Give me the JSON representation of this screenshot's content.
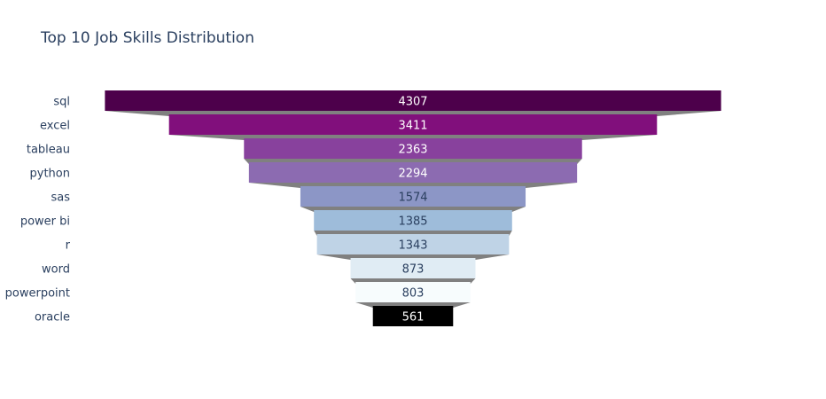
{
  "chart_data": {
    "type": "funnel",
    "title": "Top 10 Job Skills Distribution",
    "categories": [
      "sql",
      "excel",
      "tableau",
      "python",
      "sas",
      "power bi",
      "r",
      "word",
      "powerpoint",
      "oracle"
    ],
    "values": [
      4307,
      3411,
      2363,
      2294,
      1574,
      1385,
      1343,
      873,
      803,
      561
    ],
    "colors": [
      "#4d004b",
      "#810f7c",
      "#88419d",
      "#8c6bb1",
      "#8c96c6",
      "#9ebcda",
      "#bfd3e6",
      "#e0ecf4",
      "#f7fcfd",
      "#000000"
    ],
    "label_colors": [
      "#ffffff",
      "#ffffff",
      "#ffffff",
      "#ffffff",
      "#2a3f5f",
      "#2a3f5f",
      "#2a3f5f",
      "#2a3f5f",
      "#2a3f5f",
      "#ffffff"
    ],
    "connector_color": "#808080",
    "xlabel": "",
    "ylabel": "",
    "legend": "none"
  }
}
